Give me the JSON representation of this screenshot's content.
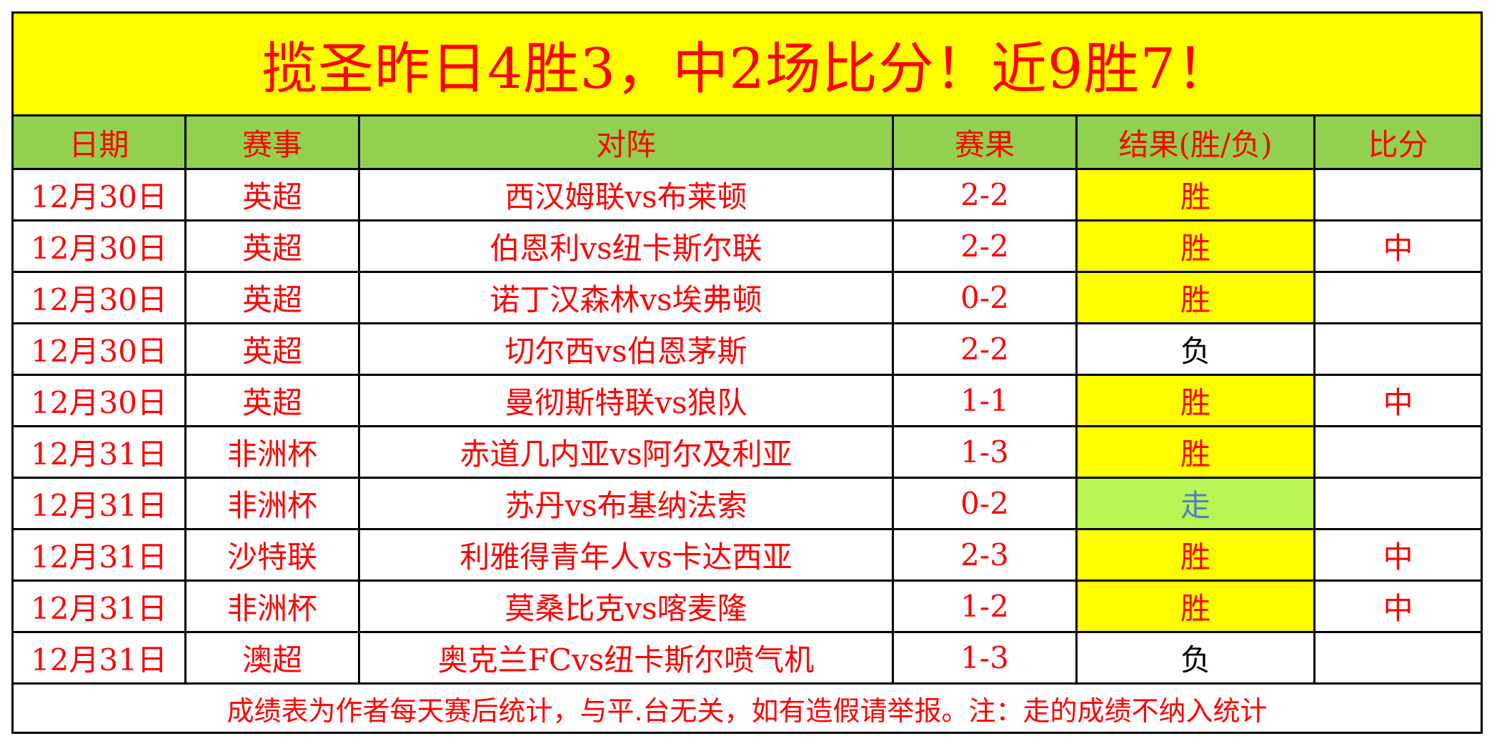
{
  "title": "揽圣昨日4胜3，中2场比分！近9胜7！",
  "headers": [
    "日期",
    "赛事",
    "对阵",
    "赛果",
    "结果(胜/负)",
    "比分"
  ],
  "rows": [
    {
      "date": "12月30日",
      "league": "英超",
      "match": "西汉姆联vs布莱顿",
      "score": "2-2",
      "result": "胜",
      "exact": ""
    },
    {
      "date": "12月30日",
      "league": "英超",
      "match": "伯恩利vs纽卡斯尔联",
      "score": "2-2",
      "result": "胜",
      "exact": "中"
    },
    {
      "date": "12月30日",
      "league": "英超",
      "match": "诺丁汉森林vs埃弗顿",
      "score": "0-2",
      "result": "胜",
      "exact": ""
    },
    {
      "date": "12月30日",
      "league": "英超",
      "match": "切尔西vs伯恩茅斯",
      "score": "2-2",
      "result": "负",
      "exact": ""
    },
    {
      "date": "12月30日",
      "league": "英超",
      "match": "曼彻斯特联vs狼队",
      "score": "1-1",
      "result": "胜",
      "exact": "中"
    },
    {
      "date": "12月31日",
      "league": "非洲杯",
      "match": "赤道几内亚vs阿尔及利亚",
      "score": "1-3",
      "result": "胜",
      "exact": ""
    },
    {
      "date": "12月31日",
      "league": "非洲杯",
      "match": "苏丹vs布基纳法索",
      "score": "0-2",
      "result": "走",
      "exact": ""
    },
    {
      "date": "12月31日",
      "league": "沙特联",
      "match": "利雅得青年人vs卡达西亚",
      "score": "2-3",
      "result": "胜",
      "exact": "中"
    },
    {
      "date": "12月31日",
      "league": "非洲杯",
      "match": "莫桑比克vs喀麦隆",
      "score": "1-2",
      "result": "胜",
      "exact": "中"
    },
    {
      "date": "12月31日",
      "league": "澳超",
      "match": "奥克兰FCvs纽卡斯尔喷气机",
      "score": "1-3",
      "result": "负",
      "exact": ""
    }
  ],
  "footer": "成绩表为作者每天赛后统计，与平.台无关，如有造假请举报。注：走的成绩不纳入统计",
  "colors": {
    "title_bg": "#ffff00",
    "header_bg": "#92d050",
    "win_bg": "#ffff00",
    "push_bg": "#b8f552",
    "text": "#ff0000"
  }
}
